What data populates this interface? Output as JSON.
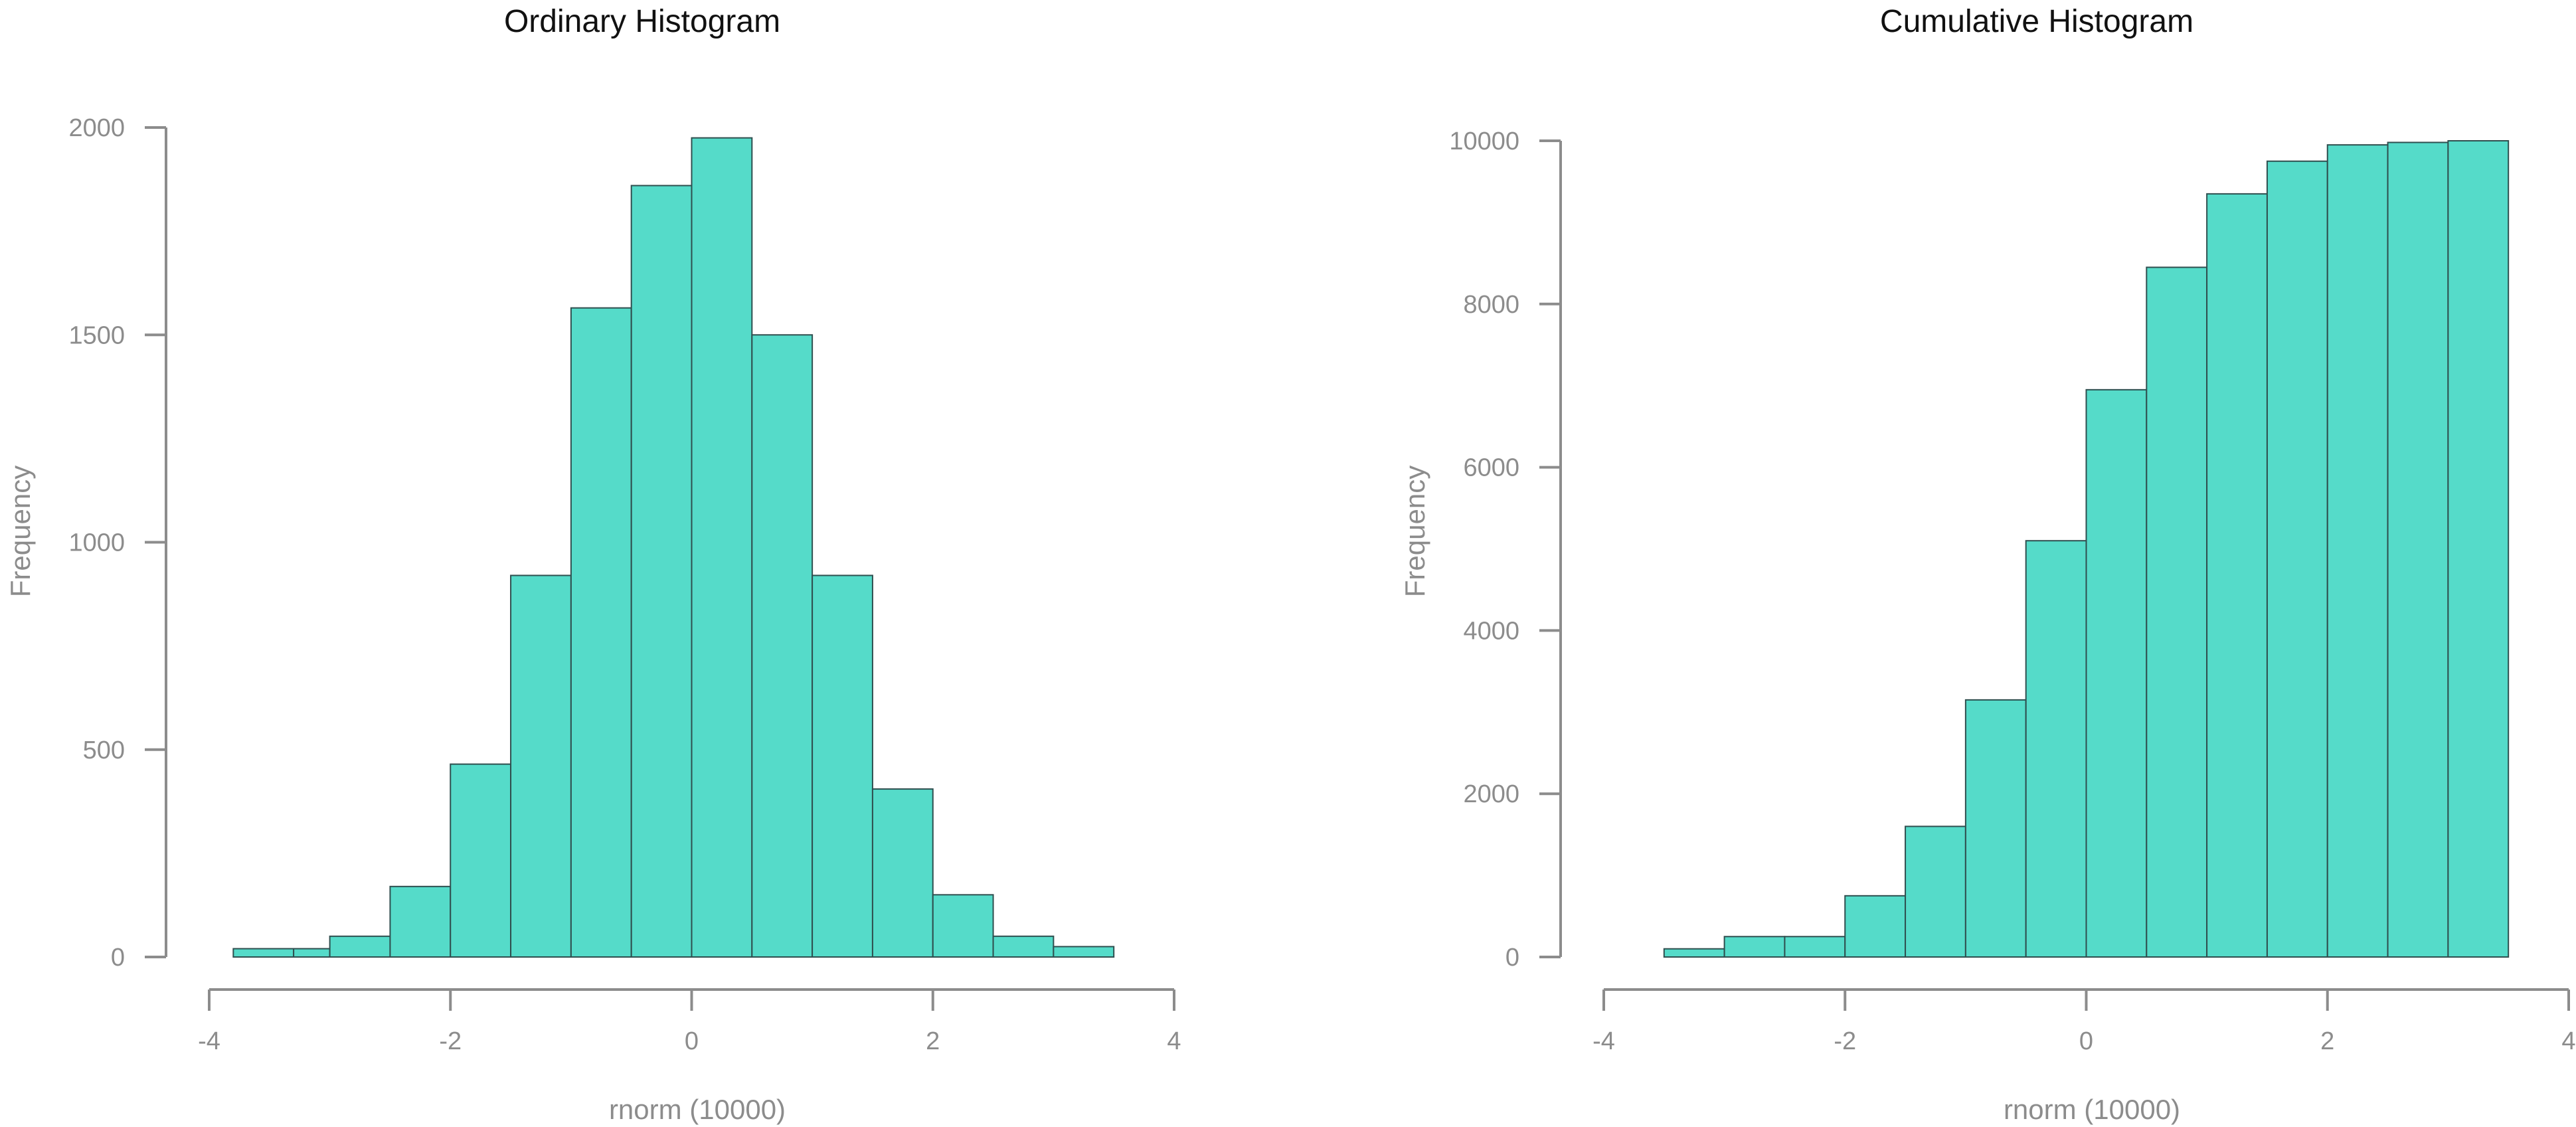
{
  "chart_data": [
    {
      "type": "bar",
      "title": "Ordinary Histogram",
      "xlabel": "rnorm (10000)",
      "ylabel": "Frequency",
      "xlim": [
        -4,
        4
      ],
      "ylim": [
        0,
        2000
      ],
      "x_ticks": [
        -4,
        -2,
        0,
        2,
        4
      ],
      "y_ticks": [
        0,
        500,
        1000,
        1500,
        2000
      ],
      "x_tick_labels": [
        "-4",
        "-2",
        "0",
        "2",
        "4"
      ],
      "y_tick_labels": [
        "0",
        "500",
        "1000",
        "1500",
        "2000"
      ],
      "bins": [
        {
          "x0": -3.8,
          "x1": -3.3,
          "value": 20
        },
        {
          "x0": -3.3,
          "x1": -3.0,
          "value": 20
        },
        {
          "x0": -3.0,
          "x1": -2.5,
          "value": 50
        },
        {
          "x0": -2.5,
          "x1": -2.0,
          "value": 170
        },
        {
          "x0": -2.0,
          "x1": -1.5,
          "value": 465
        },
        {
          "x0": -1.5,
          "x1": -1.0,
          "value": 920
        },
        {
          "x0": -1.0,
          "x1": -0.5,
          "value": 1565
        },
        {
          "x0": -0.5,
          "x1": 0.0,
          "value": 1860
        },
        {
          "x0": 0.0,
          "x1": 0.5,
          "value": 1975
        },
        {
          "x0": 0.5,
          "x1": 1.0,
          "value": 1500
        },
        {
          "x0": 1.0,
          "x1": 1.5,
          "value": 920
        },
        {
          "x0": 1.5,
          "x1": 2.0,
          "value": 405
        },
        {
          "x0": 2.0,
          "x1": 2.5,
          "value": 150
        },
        {
          "x0": 2.5,
          "x1": 3.0,
          "value": 50
        },
        {
          "x0": 3.0,
          "x1": 3.5,
          "value": 25
        }
      ],
      "bar_color": "#55dbc9",
      "bar_edge_color": "#2f4f4f",
      "grid": false
    },
    {
      "type": "bar",
      "title": "Cumulative Histogram",
      "xlabel": "rnorm (10000)",
      "ylabel": "Frequency",
      "xlim": [
        -4,
        4
      ],
      "ylim": [
        0,
        10000
      ],
      "x_ticks": [
        -4,
        -2,
        0,
        2,
        4
      ],
      "y_ticks": [
        0,
        2000,
        4000,
        6000,
        8000,
        10000
      ],
      "x_tick_labels": [
        "-4",
        "-2",
        "0",
        "2",
        "4"
      ],
      "y_tick_labels": [
        "0",
        "2000",
        "4000",
        "6000",
        "8000",
        "10000"
      ],
      "bins": [
        {
          "x0": -3.5,
          "x1": -3.0,
          "value": 100
        },
        {
          "x0": -3.0,
          "x1": -2.5,
          "value": 250
        },
        {
          "x0": -2.5,
          "x1": -2.0,
          "value": 250
        },
        {
          "x0": -2.0,
          "x1": -1.5,
          "value": 750
        },
        {
          "x0": -1.5,
          "x1": -1.0,
          "value": 1600
        },
        {
          "x0": -1.0,
          "x1": -0.5,
          "value": 3150
        },
        {
          "x0": -0.5,
          "x1": 0.0,
          "value": 5100
        },
        {
          "x0": 0.0,
          "x1": 0.5,
          "value": 6950
        },
        {
          "x0": 0.5,
          "x1": 1.0,
          "value": 8450
        },
        {
          "x0": 1.0,
          "x1": 1.5,
          "value": 9350
        },
        {
          "x0": 1.5,
          "x1": 2.0,
          "value": 9750
        },
        {
          "x0": 2.0,
          "x1": 2.5,
          "value": 9950
        },
        {
          "x0": 2.5,
          "x1": 3.0,
          "value": 9980
        },
        {
          "x0": 3.0,
          "x1": 3.5,
          "value": 10000
        }
      ],
      "bar_color": "#55dbc9",
      "bar_edge_color": "#2f4f4f",
      "grid": false
    }
  ]
}
